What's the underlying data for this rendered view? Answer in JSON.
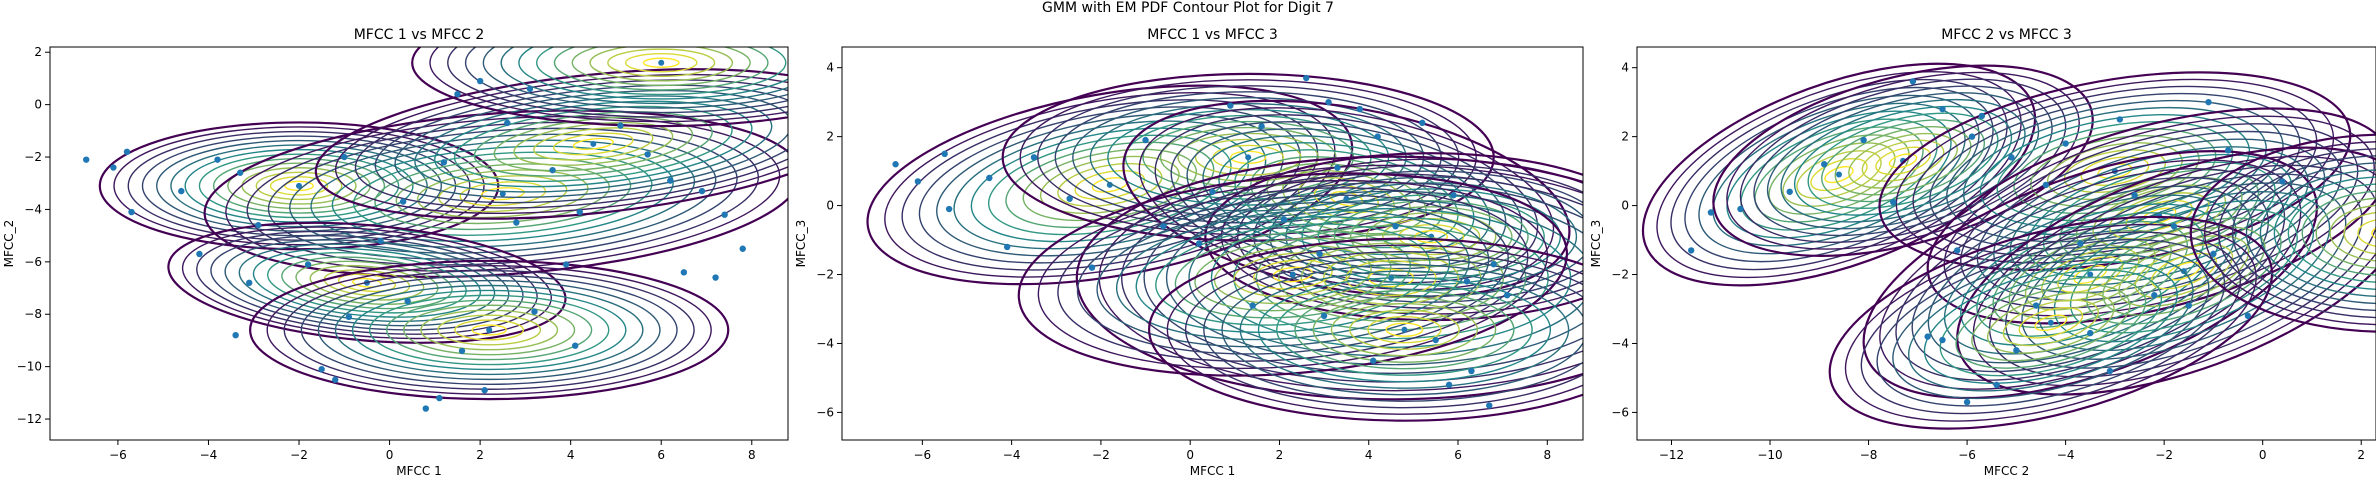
{
  "figure": {
    "title": "GMM with EM PDF Contour Plot for Digit 7"
  },
  "colors": {
    "points": "#1f77b4",
    "contour_low": "#440154",
    "contour_mid": "#21918c",
    "contour_high": "#fde725"
  },
  "chart_data": [
    {
      "type": "scatter",
      "title": "MFCC 1 vs MFCC 2",
      "xlabel": "MFCC 1",
      "ylabel": "MFCC_2",
      "xlim": [
        -7.5,
        8.8
      ],
      "ylim": [
        -12.8,
        2.2
      ],
      "xticks": [
        -6,
        -4,
        -2,
        0,
        2,
        4,
        6,
        8
      ],
      "yticks": [
        -12,
        -10,
        -8,
        -6,
        -4,
        -2,
        0,
        2
      ],
      "components": [
        {
          "mean": [
            -2.0,
            -3.1
          ],
          "sd": [
            2.0,
            1.1
          ],
          "angle": 0
        },
        {
          "mean": [
            2.5,
            -3.4
          ],
          "sd": [
            3.0,
            1.4
          ],
          "angle": 4
        },
        {
          "mean": [
            4.5,
            -1.5
          ],
          "sd": [
            2.8,
            1.2
          ],
          "angle": 6
        },
        {
          "mean": [
            -0.5,
            -6.8
          ],
          "sd": [
            2.0,
            1.0
          ],
          "angle": -5
        },
        {
          "mean": [
            2.2,
            -8.6
          ],
          "sd": [
            2.4,
            1.2
          ],
          "angle": 0
        },
        {
          "mean": [
            6.0,
            1.6
          ],
          "sd": [
            2.5,
            1.1
          ],
          "angle": 0
        }
      ],
      "points": [
        [
          -6.7,
          -2.1
        ],
        [
          -6.1,
          -2.4
        ],
        [
          -5.8,
          -1.8
        ],
        [
          -5.7,
          -4.1
        ],
        [
          -4.2,
          -5.7
        ],
        [
          -3.1,
          -6.8
        ],
        [
          -3.4,
          -8.8
        ],
        [
          -1.5,
          -10.1
        ],
        [
          -1.2,
          -10.5
        ],
        [
          0.8,
          -11.6
        ],
        [
          1.1,
          -11.2
        ],
        [
          2.1,
          -10.9
        ],
        [
          1.5,
          0.4
        ],
        [
          2.0,
          0.9
        ],
        [
          3.1,
          0.6
        ],
        [
          7.2,
          -6.6
        ],
        [
          6.5,
          -6.4
        ],
        [
          7.8,
          -5.5
        ],
        [
          -4.6,
          -3.3
        ],
        [
          -3.8,
          -2.1
        ],
        [
          -2.9,
          -4.6
        ],
        [
          -1.0,
          -2.0
        ],
        [
          0.3,
          -3.7
        ],
        [
          1.2,
          -2.2
        ],
        [
          2.8,
          -4.5
        ],
        [
          3.6,
          -2.5
        ],
        [
          4.2,
          -4.1
        ],
        [
          5.1,
          -0.8
        ],
        [
          6.2,
          -2.9
        ],
        [
          7.4,
          -4.2
        ],
        [
          -1.8,
          -6.1
        ],
        [
          0.4,
          -7.5
        ],
        [
          -0.9,
          -8.1
        ],
        [
          1.6,
          -9.4
        ],
        [
          3.2,
          -7.9
        ],
        [
          4.1,
          -9.2
        ],
        [
          2.6,
          -0.7
        ],
        [
          5.7,
          -1.9
        ],
        [
          6.9,
          -3.3
        ],
        [
          -3.3,
          -2.6
        ],
        [
          -0.2,
          -5.2
        ],
        [
          3.9,
          -6.1
        ]
      ]
    },
    {
      "type": "scatter",
      "title": "MFCC 1 vs MFCC 3",
      "xlabel": "MFCC 1",
      "ylabel": "MFCC_3",
      "xlim": [
        -7.8,
        8.8
      ],
      "ylim": [
        -6.8,
        4.6
      ],
      "xticks": [
        -6,
        -4,
        -2,
        0,
        2,
        4,
        6,
        8
      ],
      "yticks": [
        -6,
        -4,
        -2,
        0,
        2,
        4
      ],
      "components": [
        {
          "mean": [
            -1.8,
            0.6
          ],
          "sd": [
            2.5,
            1.2
          ],
          "angle": 10
        },
        {
          "mean": [
            1.3,
            1.4
          ],
          "sd": [
            2.5,
            1.1
          ],
          "angle": 0
        },
        {
          "mean": [
            3.5,
            0.2
          ],
          "sd": [
            2.3,
            1.2
          ],
          "angle": -10
        },
        {
          "mean": [
            5.4,
            -0.9
          ],
          "sd": [
            2.3,
            1.1
          ],
          "angle": 0
        },
        {
          "mean": [
            4.5,
            -2.1
          ],
          "sd": [
            3.2,
            1.6
          ],
          "angle": 0
        },
        {
          "mean": [
            2.3,
            -2.0
          ],
          "sd": [
            2.8,
            1.3
          ],
          "angle": 5
        },
        {
          "mean": [
            4.8,
            -3.6
          ],
          "sd": [
            2.6,
            1.2
          ],
          "angle": 0
        }
      ],
      "points": [
        [
          -6.6,
          1.2
        ],
        [
          -6.1,
          0.7
        ],
        [
          -5.5,
          1.5
        ],
        [
          -5.4,
          -0.1
        ],
        [
          -4.1,
          -1.2
        ],
        [
          -2.2,
          -1.8
        ],
        [
          0.2,
          -1.1
        ],
        [
          2.6,
          3.7
        ],
        [
          3.1,
          3.0
        ],
        [
          3.8,
          2.8
        ],
        [
          4.2,
          2.0
        ],
        [
          5.2,
          2.4
        ],
        [
          6.7,
          -5.8
        ],
        [
          5.8,
          -5.2
        ],
        [
          6.3,
          -4.8
        ],
        [
          -3.5,
          1.4
        ],
        [
          -2.7,
          0.2
        ],
        [
          -1.0,
          1.9
        ],
        [
          0.5,
          0.4
        ],
        [
          1.6,
          2.3
        ],
        [
          2.1,
          -0.4
        ],
        [
          3.3,
          1.1
        ],
        [
          4.6,
          -0.6
        ],
        [
          5.9,
          0.3
        ],
        [
          6.8,
          -1.7
        ],
        [
          1.4,
          -2.9
        ],
        [
          3.0,
          -3.2
        ],
        [
          4.1,
          -4.5
        ],
        [
          5.5,
          -3.9
        ],
        [
          7.1,
          -2.6
        ],
        [
          -0.6,
          -0.6
        ],
        [
          2.9,
          -1.4
        ],
        [
          6.2,
          -2.2
        ],
        [
          0.9,
          2.9
        ],
        [
          -4.5,
          0.8
        ]
      ]
    },
    {
      "type": "scatter",
      "title": "MFCC 2 vs MFCC 3",
      "xlabel": "MFCC 2",
      "ylabel": "MFCC_3",
      "xlim": [
        -12.7,
        2.3
      ],
      "ylim": [
        -6.8,
        4.6
      ],
      "xticks": [
        -12,
        -10,
        -8,
        -6,
        -4,
        -2,
        0,
        2
      ],
      "yticks": [
        -6,
        -4,
        -2,
        0,
        2,
        4
      ],
      "components": [
        {
          "mean": [
            -8.6,
            0.9
          ],
          "sd": [
            1.9,
            1.2
          ],
          "angle": 20
        },
        {
          "mean": [
            -7.3,
            1.3
          ],
          "sd": [
            1.8,
            1.1
          ],
          "angle": 15
        },
        {
          "mean": [
            -3.0,
            1.0
          ],
          "sd": [
            2.2,
            1.2
          ],
          "angle": 10
        },
        {
          "mean": [
            -2.1,
            -0.3
          ],
          "sd": [
            2.2,
            1.2
          ],
          "angle": 15
        },
        {
          "mean": [
            -3.5,
            -2.0
          ],
          "sd": [
            2.2,
            1.3
          ],
          "angle": 20
        },
        {
          "mean": [
            -1.6,
            -1.9
          ],
          "sd": [
            2.2,
            1.3
          ],
          "angle": 20
        },
        {
          "mean": [
            -4.3,
            -3.4
          ],
          "sd": [
            2.1,
            1.2
          ],
          "angle": 15
        },
        {
          "mean": [
            2.5,
            -0.8
          ],
          "sd": [
            1.8,
            1.3
          ],
          "angle": 0
        }
      ],
      "points": [
        [
          -11.6,
          -1.3
        ],
        [
          -11.2,
          -0.2
        ],
        [
          -10.6,
          -0.1
        ],
        [
          -7.1,
          3.6
        ],
        [
          -6.5,
          2.8
        ],
        [
          -5.9,
          2.0
        ],
        [
          -5.7,
          2.6
        ],
        [
          -5.1,
          1.4
        ],
        [
          -6.2,
          -1.3
        ],
        [
          -6.5,
          -3.9
        ],
        [
          -6.8,
          -3.8
        ],
        [
          -6.0,
          -5.7
        ],
        [
          -5.4,
          -5.2
        ],
        [
          -3.1,
          -4.8
        ],
        [
          -1.5,
          -2.9
        ],
        [
          -0.3,
          -3.2
        ],
        [
          0.4,
          0.7
        ],
        [
          -1.1,
          3.0
        ],
        [
          -9.6,
          0.4
        ],
        [
          -8.1,
          1.9
        ],
        [
          -7.5,
          0.1
        ],
        [
          -4.0,
          1.8
        ],
        [
          -2.6,
          0.3
        ],
        [
          -3.7,
          -1.1
        ],
        [
          -2.2,
          -2.6
        ],
        [
          -4.6,
          -2.9
        ],
        [
          -1.0,
          -1.4
        ],
        [
          -5.0,
          -4.2
        ],
        [
          -3.5,
          -3.7
        ],
        [
          -0.7,
          1.6
        ],
        [
          -8.9,
          1.2
        ],
        [
          -2.9,
          2.5
        ],
        [
          -4.4,
          0.6
        ],
        [
          -1.8,
          -0.6
        ]
      ]
    }
  ]
}
